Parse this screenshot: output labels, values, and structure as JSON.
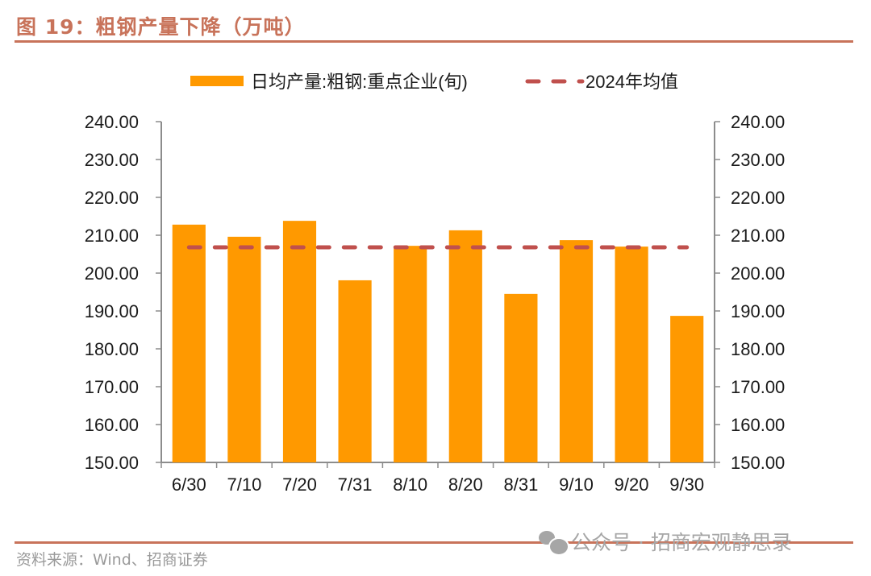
{
  "figure": {
    "title": "图 19：粗钢产量下降（万吨）",
    "source": "资料来源：Wind、招商证券",
    "watermark": "公众号 · 招商宏观静思录",
    "rule_color": "#c8735a"
  },
  "chart_data": {
    "type": "bar",
    "title": "粗钢产量下降（万吨）",
    "categories": [
      "6/30",
      "7/10",
      "7/20",
      "7/31",
      "8/10",
      "8/20",
      "8/31",
      "9/10",
      "9/20",
      "9/30"
    ],
    "series": [
      {
        "name": "日均产量:粗钢:重点企业(旬)",
        "type": "bar",
        "color": "#ff9900",
        "values": [
          212.8,
          209.6,
          213.8,
          198.1,
          207.2,
          211.3,
          194.5,
          208.7,
          207.0,
          188.7
        ]
      },
      {
        "name": "2024年均值",
        "type": "line",
        "style": "dashed",
        "color": "#c0504d",
        "values": [
          206.8,
          206.8,
          206.8,
          206.8,
          206.8,
          206.8,
          206.8,
          206.8,
          206.8,
          206.8
        ]
      }
    ],
    "xlabel": "",
    "ylabel": "",
    "ylim": [
      150,
      240
    ],
    "yticks": [
      "150.00",
      "160.00",
      "170.00",
      "180.00",
      "190.00",
      "200.00",
      "210.00",
      "220.00",
      "230.00",
      "240.00"
    ],
    "y2lim": [
      150,
      240
    ],
    "y2ticks": [
      "150.00",
      "160.00",
      "170.00",
      "180.00",
      "190.00",
      "200.00",
      "210.00",
      "220.00",
      "230.00",
      "240.00"
    ],
    "grid": false,
    "legend_position": "top-center"
  }
}
